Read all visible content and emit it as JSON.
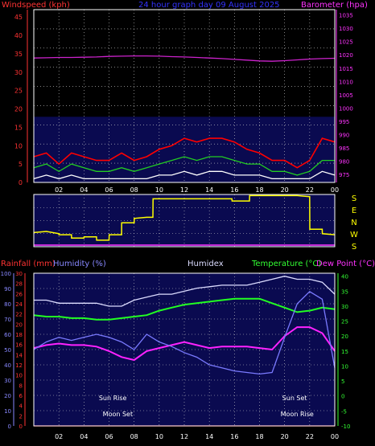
{
  "title": "24 hour graph day  09 August  2025",
  "colors": {
    "gust": "#ff0000",
    "windspeed": "#22cc22",
    "wind_avg": "#ffffff",
    "barometer": "#cc22cc",
    "direction": "#ffff00",
    "temperature": "#22ff22",
    "dew_point": "#ff22ff",
    "humidex": "#dcdcff",
    "humidity": "#7a7aff",
    "rainfall": "#ff0000",
    "axis_left": "#ff3333",
    "axis_right": "#ff33ff",
    "axis_right2": "#33ff33",
    "axis_humidity": "#8888ff",
    "plot_fill": "#0a0a50",
    "grid": "#d0d0d0"
  },
  "time_ticks": [
    "02",
    "04",
    "06",
    "08",
    "10",
    "12",
    "14",
    "16",
    "18",
    "20",
    "22",
    "00"
  ],
  "chart_data": [
    {
      "type": "line",
      "name": "wind",
      "ylabel": "Windspeed (kph)",
      "y2label": "Barometer (hpa)",
      "ylim": [
        0,
        47
      ],
      "y2lim": [
        972,
        1037
      ],
      "yticks": [
        0,
        5,
        10,
        15,
        20,
        25,
        30,
        35,
        40,
        45
      ],
      "y2ticks": [
        975,
        980,
        985,
        990,
        995,
        1000,
        1005,
        1010,
        1015,
        1020,
        1025,
        1030,
        1035
      ],
      "hours": [
        0,
        1,
        2,
        3,
        4,
        5,
        6,
        7,
        8,
        9,
        10,
        11,
        12,
        13,
        14,
        15,
        16,
        17,
        18,
        19,
        20,
        21,
        22,
        23,
        24
      ],
      "series": [
        {
          "key": "gust",
          "values": [
            7,
            8,
            5,
            8,
            7,
            6,
            6,
            8,
            6,
            7,
            9,
            10,
            12,
            11,
            12,
            12,
            11,
            9,
            8,
            6,
            6,
            4,
            6,
            12,
            11
          ]
        },
        {
          "key": "windspeed",
          "values": [
            4,
            5,
            3,
            5,
            4,
            3,
            3,
            4,
            3,
            4,
            5,
            6,
            7,
            6,
            7,
            7,
            6,
            5,
            5,
            3,
            3,
            2,
            3,
            6,
            6
          ]
        },
        {
          "key": "wind_avg",
          "values": [
            1,
            2,
            1,
            2,
            1,
            1,
            1,
            1,
            1,
            1,
            2,
            2,
            3,
            2,
            3,
            3,
            2,
            2,
            2,
            1,
            1,
            1,
            1,
            3,
            2
          ]
        },
        {
          "key": "barometer",
          "values": [
            1018.8,
            1018.9,
            1019.0,
            1019.0,
            1019.1,
            1019.2,
            1019.4,
            1019.5,
            1019.6,
            1019.6,
            1019.5,
            1019.3,
            1019.2,
            1019.0,
            1018.8,
            1018.6,
            1018.3,
            1018.0,
            1017.7,
            1017.6,
            1017.8,
            1018.1,
            1018.4,
            1018.6,
            1018.7
          ]
        }
      ]
    },
    {
      "type": "line",
      "name": "direction",
      "yticks": [
        "S",
        "E",
        "N",
        "W",
        "S"
      ],
      "hours": [
        0,
        1,
        2,
        2.01,
        3,
        3.01,
        4,
        4.01,
        5,
        5.01,
        6,
        6.01,
        7,
        7.01,
        8,
        8.01,
        9,
        9.5,
        9.51,
        15.8,
        15.81,
        17.2,
        17.21,
        19,
        20,
        21,
        22,
        22.01,
        23,
        23.01,
        24
      ],
      "series": [
        {
          "key": "direction",
          "values": [
            185,
            190,
            180,
            175,
            175,
            160,
            160,
            165,
            165,
            150,
            150,
            175,
            175,
            230,
            230,
            250,
            255,
            255,
            340,
            340,
            330,
            330,
            355,
            355,
            355,
            355,
            350,
            200,
            200,
            180,
            175
          ]
        }
      ]
    },
    {
      "type": "line",
      "name": "temperature",
      "ylabels": [
        "Rainfall (mm)",
        "Humidity (%)",
        "Humidex",
        "Temperature (°C)",
        "Dew Point (°C)"
      ],
      "humidity_ticks": [
        0,
        10,
        20,
        30,
        40,
        50,
        60,
        70,
        80,
        90,
        100
      ],
      "rainfall_ticks": [
        0,
        2,
        4,
        6,
        8,
        10,
        12,
        14,
        16,
        18,
        20,
        22,
        24,
        26,
        28,
        30
      ],
      "temp_ticks": [
        -10,
        -5,
        0,
        5,
        10,
        15,
        20,
        25,
        30,
        35,
        40
      ],
      "temp_lim": [
        -10,
        41
      ],
      "hours": [
        0,
        1,
        2,
        3,
        4,
        5,
        6,
        7,
        8,
        9,
        10,
        11,
        12,
        13,
        14,
        15,
        16,
        17,
        18,
        19,
        20,
        21,
        22,
        23,
        24
      ],
      "series": [
        {
          "key": "temperature",
          "values": [
            27,
            26.5,
            26.5,
            26,
            26,
            25.5,
            25.5,
            26,
            26.5,
            27,
            28.5,
            29.5,
            30.5,
            31,
            31.5,
            32,
            32.5,
            32.5,
            32.5,
            31,
            29.5,
            28,
            28.5,
            29.5,
            29
          ]
        },
        {
          "key": "dew_point",
          "values": [
            16,
            17,
            17.5,
            17,
            17,
            16.5,
            15,
            13,
            12,
            15,
            16,
            17,
            18,
            17,
            16,
            16.5,
            16.5,
            16.5,
            16,
            15.5,
            20,
            23,
            23,
            21,
            15
          ]
        },
        {
          "key": "humidex",
          "values": [
            32,
            32,
            31,
            31,
            31,
            31,
            30,
            30,
            32,
            33,
            34,
            34,
            35,
            36,
            36.5,
            37,
            37,
            37,
            38,
            39,
            40,
            39,
            39,
            38,
            34
          ]
        },
        {
          "key": "humidity",
          "values": [
            50,
            55,
            58,
            56,
            58,
            60,
            58,
            55,
            50,
            60,
            55,
            52,
            48,
            45,
            40,
            38,
            36,
            35,
            34,
            35,
            58,
            80,
            88,
            83,
            38
          ]
        },
        {
          "key": "rainfall",
          "values": [
            0,
            0,
            0,
            0,
            0,
            0,
            0,
            0,
            0,
            0,
            0,
            0,
            0,
            0,
            0,
            0,
            0,
            0,
            0,
            0,
            0,
            0,
            0,
            0,
            0
          ]
        }
      ],
      "annotations": [
        {
          "text": "Sun Rise",
          "hour": 6.3,
          "row": "upper"
        },
        {
          "text": "Moon Set",
          "hour": 6.7,
          "row": "lower"
        },
        {
          "text": "Sun Set",
          "hour": 20.8,
          "row": "upper"
        },
        {
          "text": "Moon Rise",
          "hour": 21.0,
          "row": "lower"
        }
      ]
    }
  ]
}
